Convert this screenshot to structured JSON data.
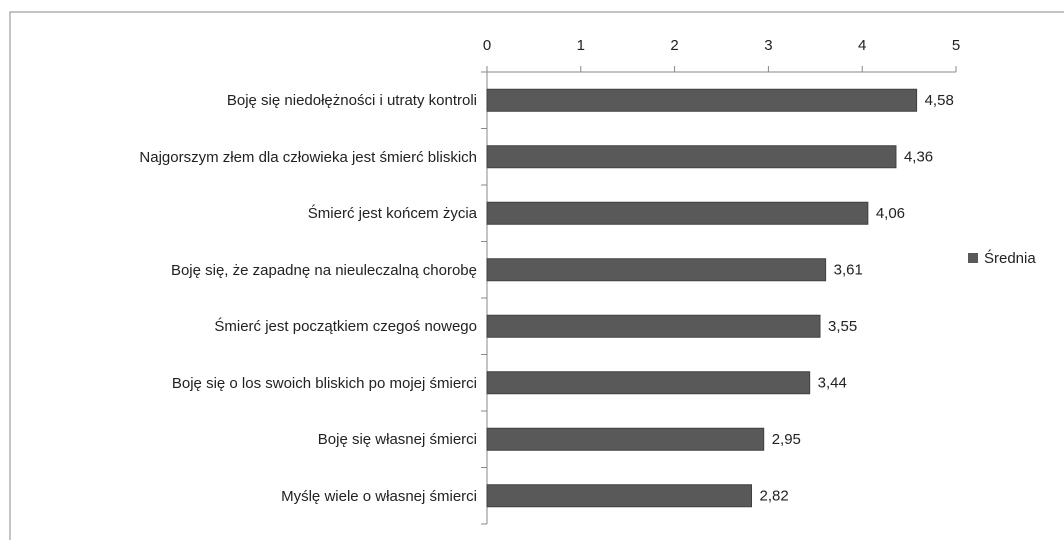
{
  "chart_data": {
    "type": "bar",
    "orientation": "horizontal",
    "categories": [
      "Boję się niedołężności i utraty kontroli",
      "Najgorszym złem dla człowieka jest śmierć bliskich",
      "Śmierć jest końcem życia",
      "Boję się, że zapadnę na nieuleczalną chorobę",
      "Śmierć jest początkiem czegoś nowego",
      "Boję się o los swoich bliskich po mojej śmierci",
      "Boję się własnej śmierci",
      "Myślę wiele o własnej śmierci"
    ],
    "series": [
      {
        "name": "Średnia",
        "color": "#595959",
        "values": [
          4.58,
          4.36,
          4.06,
          3.61,
          3.55,
          3.44,
          2.95,
          2.82
        ],
        "value_labels": [
          "4,58",
          "4,36",
          "4,06",
          "3,61",
          "3,55",
          "3,44",
          "2,95",
          "2,82"
        ]
      }
    ],
    "xlim": [
      0,
      5
    ],
    "xticks": [
      0,
      1,
      2,
      3,
      4,
      5
    ],
    "legend": "right"
  }
}
